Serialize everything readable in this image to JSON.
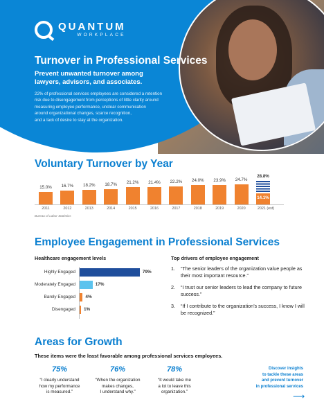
{
  "brand": {
    "name": "QUANTUM",
    "sub": "WORKPLACE",
    "accent": "#0a86d6",
    "orange": "#f0822f",
    "navy": "#1f4e9c"
  },
  "hero": {
    "title": "Turnover in Professional Services",
    "subtitle": "Prevent unwanted turnover among lawyers, advisors, and associates.",
    "body_lines": [
      "22% of professional services employees are considered a retention",
      "risk due to disengagement from perceptions of little clarity around",
      "measuring employee performance, unclear communication",
      "around organizational changes, scarce recognition,",
      "and a lack of desire to stay at the organization."
    ]
  },
  "turnover": {
    "heading": "Voluntary Turnover by Year",
    "source": "Bureau of Labor Statistics"
  },
  "chart_data": [
    {
      "type": "bar",
      "title": "Voluntary Turnover by Year",
      "categories": [
        "2011",
        "2012",
        "2013",
        "2014",
        "2015",
        "2016",
        "2017",
        "2018",
        "2019",
        "2020",
        "2021 (est)"
      ],
      "values": [
        15.0,
        16.7,
        18.2,
        18.7,
        21.2,
        21.4,
        22.2,
        24.0,
        23.9,
        24.7,
        14.1
      ],
      "value_labels": [
        "15.0%",
        "16.7%",
        "18.2%",
        "18.7%",
        "21.2%",
        "21.4%",
        "22.2%",
        "24.0%",
        "23.9%",
        "24.7%",
        "14.1%"
      ],
      "estimate": {
        "category": "2021 (est)",
        "value": 28.8,
        "label": "28.8%"
      },
      "ylim": [
        0,
        30
      ],
      "xlabel": "",
      "ylabel": "",
      "grid": false
    },
    {
      "type": "bar",
      "orientation": "horizontal",
      "title": "Healthcare engagement levels",
      "categories": [
        "Highly Engaged",
        "Moderately Engaged",
        "Barely Engaged",
        "Disengaged"
      ],
      "values": [
        79,
        17,
        4,
        1
      ],
      "value_labels": [
        "79%",
        "17%",
        "4%",
        "1%"
      ],
      "colors": [
        "#1f4e9c",
        "#5cc3ee",
        "#f0822f",
        "#f0822f"
      ],
      "xlim": [
        0,
        100
      ],
      "xlabel": "",
      "ylabel": ""
    }
  ],
  "engagement": {
    "heading": "Employee Engagement in Professional Services",
    "levels_title": "Healthcare engagement levels",
    "drivers_title": "Top drivers of employee engagement",
    "drivers": [
      {
        "num": "1.",
        "text": "“The senior leaders of the organization value people as their most important resource.”"
      },
      {
        "num": "2.",
        "text": "“I trust our senior leaders to lead the company to future success.”"
      },
      {
        "num": "3.",
        "text": "“If I contribute to the organization’s success, I know I will be recognized.”"
      }
    ]
  },
  "growth": {
    "heading": "Areas for Growth",
    "subtitle": "These items were the least favorable among professional services employees.",
    "items": [
      {
        "pct": "75%",
        "quote_lines": [
          "“I clearly understand",
          "how my performance",
          "is measured.”"
        ]
      },
      {
        "pct": "76%",
        "quote_lines": [
          "“When the organization",
          "makes changes,",
          "I understand why.”"
        ]
      },
      {
        "pct": "78%",
        "quote_lines": [
          "“It would take me",
          "a lot to leave this",
          "organization.”"
        ]
      }
    ],
    "cta_lines": [
      "Discover insights",
      "to tackle these areas",
      "and prevent turnover",
      "in professional services"
    ],
    "cta_arrow": "⟶"
  }
}
